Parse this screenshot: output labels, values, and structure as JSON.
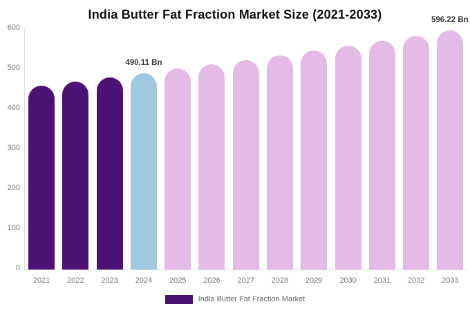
{
  "chart_data": {
    "type": "bar",
    "title": "India Butter Fat Fraction Market Size (2021-2033)",
    "unit": "Bn",
    "categories": [
      "2021",
      "2022",
      "2023",
      "2024",
      "2025",
      "2026",
      "2027",
      "2028",
      "2029",
      "2030",
      "2031",
      "2032",
      "2033"
    ],
    "values": [
      459.12,
      469.22,
      479.55,
      490.11,
      500.9,
      511.93,
      523.2,
      534.72,
      546.49,
      558.52,
      570.81,
      583.38,
      596.22
    ],
    "point_types": [
      "historical",
      "historical",
      "historical",
      "base",
      "forecast",
      "forecast",
      "forecast",
      "forecast",
      "forecast",
      "forecast",
      "forecast",
      "forecast",
      "forecast"
    ],
    "point_labels": [
      "",
      "",
      "",
      "490.11 Bn",
      "",
      "",
      "",
      "",
      "",
      "",
      "",
      "",
      "596.22 Bn"
    ],
    "ylim": [
      0,
      600
    ],
    "y_ticks": [
      0,
      100,
      200,
      300,
      400,
      500,
      600
    ],
    "grid": false,
    "legend": {
      "label": "India Butter Fat Fraction Market",
      "position": "bottom"
    },
    "colors": {
      "historical": "#4B1274",
      "base": "#A0C8DE",
      "forecast": "#E4BBE6",
      "legend_swatch": "#4B1274",
      "axis_line": "#DCDCDC",
      "tick_text": "#757575",
      "value_label_text": "#333333",
      "title_text": "#0D0D0D"
    }
  }
}
